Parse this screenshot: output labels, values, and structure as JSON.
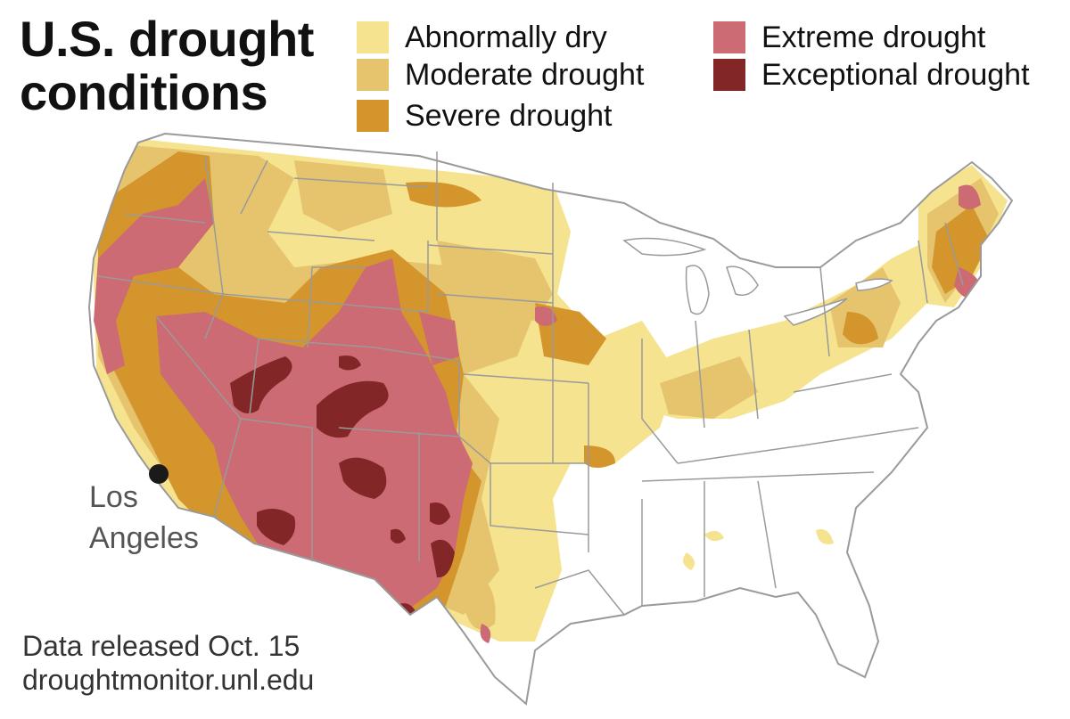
{
  "title": {
    "line1": "U.S. drought",
    "line2": "conditions"
  },
  "legend": [
    {
      "label": "Abnormally dry",
      "color": "#f5e38f"
    },
    {
      "label": "Moderate drought",
      "color": "#e6c46e"
    },
    {
      "label": "Severe drought",
      "color": "#d3952c"
    },
    {
      "label": "Extreme drought",
      "color": "#cc6b73"
    },
    {
      "label": "Exceptional drought",
      "color": "#822628"
    }
  ],
  "city": {
    "line1": "Los",
    "line2": "Angeles"
  },
  "source": {
    "line1": "Data released Oct. 15",
    "line2": "droughtmonitor.unl.edu"
  }
}
